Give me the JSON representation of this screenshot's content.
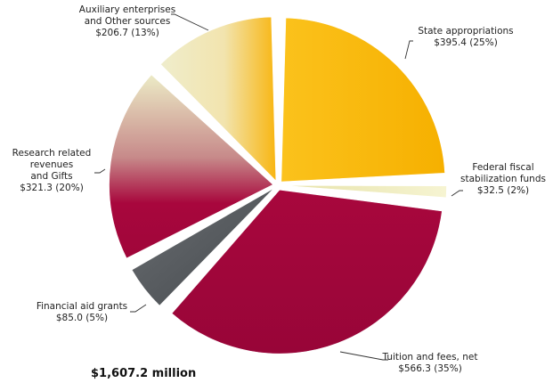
{
  "chart_data": {
    "type": "pie",
    "title": "",
    "units": "",
    "total_label": "$1,607.2 million",
    "slices": [
      {
        "name": "State appropriations",
        "label_lines": [
          "State appropriations",
          "$395.4 (25%)"
        ],
        "value": 395.4,
        "percent": 25,
        "color": "#f9b500"
      },
      {
        "name": "Federal fiscal stabilization funds",
        "label_lines": [
          "Federal fiscal",
          "stabilization funds",
          "$32.5 (2%)"
        ],
        "value": 32.5,
        "percent": 2,
        "color": "#ece9b5"
      },
      {
        "name": "Tuition and fees, net",
        "label_lines": [
          "Tuition and fees, net",
          "$566.3 (35%)"
        ],
        "value": 566.3,
        "percent": 35,
        "color": "#a0063a"
      },
      {
        "name": "Financial aid grants",
        "label_lines": [
          "Financial aid grants",
          "$85.0 (5%)"
        ],
        "value": 85.0,
        "percent": 5,
        "color": "#50555a"
      },
      {
        "name": "Research related revenues and Gifts",
        "label_lines": [
          "Research related",
          "revenues",
          "and Gifts",
          "$321.3 (20%)"
        ],
        "value": 321.3,
        "percent": 20,
        "color": "#a0063a"
      },
      {
        "name": "Auxiliary enterprises and Other sources",
        "label_lines": [
          "Auxiliary enterprises",
          "and Other sources",
          "$206.7 (13%)"
        ],
        "value": 206.7,
        "percent": 13,
        "color": "#f9b500"
      }
    ]
  }
}
